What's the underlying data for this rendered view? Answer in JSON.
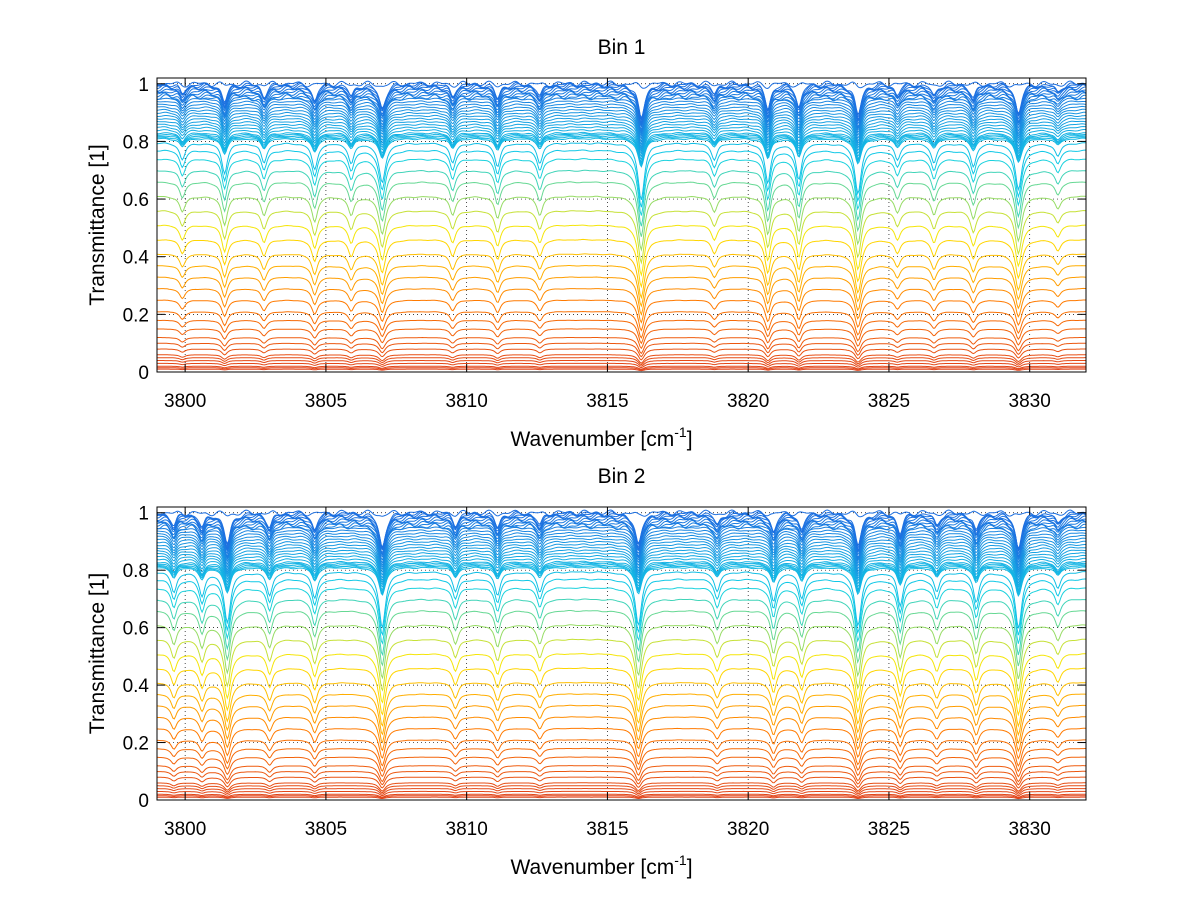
{
  "chart_data": [
    {
      "type": "line",
      "title": "Bin 1",
      "xlabel": "Wavenumber [cm",
      "xlabel_sup": "-1",
      "xlabel_end": "]",
      "ylabel": "Transmittance [1]",
      "xlim": [
        3799,
        3832
      ],
      "ylim": [
        0,
        1.02
      ],
      "xticks": [
        3800,
        3805,
        3810,
        3815,
        3820,
        3825,
        3830
      ],
      "yticks": [
        0,
        0.2,
        0.4,
        0.6,
        0.8,
        1
      ],
      "grid": "dotted",
      "n_series": 56,
      "colormap": [
        "#e0401a",
        "#ff7a00",
        "#ffe600",
        "#10d0e6",
        "#1d6fe0"
      ],
      "series_base_transmittance": [
        0.01,
        0.015,
        0.02,
        0.03,
        0.04,
        0.05,
        0.06,
        0.08,
        0.1,
        0.12,
        0.15,
        0.18,
        0.21,
        0.25,
        0.29,
        0.33,
        0.37,
        0.41,
        0.46,
        0.51,
        0.56,
        0.61,
        0.66,
        0.7,
        0.74,
        0.77,
        0.795,
        0.81,
        0.815,
        0.82,
        0.825,
        0.83,
        0.84,
        0.85,
        0.86,
        0.87,
        0.88,
        0.89,
        0.9,
        0.91,
        0.92,
        0.93,
        0.94,
        0.95,
        0.955,
        0.96,
        0.965,
        0.97,
        0.975,
        0.98,
        0.985,
        0.99,
        0.993,
        0.996,
        0.998,
        1.0
      ],
      "absorption_lines": [
        {
          "x": 3799.9,
          "depth": 0.25,
          "width": 0.12
        },
        {
          "x": 3801.4,
          "depth": 0.45,
          "width": 0.12
        },
        {
          "x": 3802.8,
          "depth": 0.3,
          "width": 0.12
        },
        {
          "x": 3804.6,
          "depth": 0.4,
          "width": 0.12
        },
        {
          "x": 3805.9,
          "depth": 0.3,
          "width": 0.12
        },
        {
          "x": 3807.0,
          "depth": 0.6,
          "width": 0.14
        },
        {
          "x": 3809.5,
          "depth": 0.3,
          "width": 0.12
        },
        {
          "x": 3811.1,
          "depth": 0.35,
          "width": 0.12
        },
        {
          "x": 3812.6,
          "depth": 0.3,
          "width": 0.12
        },
        {
          "x": 3816.2,
          "depth": 0.85,
          "width": 0.14
        },
        {
          "x": 3818.8,
          "depth": 0.25,
          "width": 0.12
        },
        {
          "x": 3820.7,
          "depth": 0.6,
          "width": 0.12
        },
        {
          "x": 3821.8,
          "depth": 0.55,
          "width": 0.12
        },
        {
          "x": 3823.9,
          "depth": 0.75,
          "width": 0.14
        },
        {
          "x": 3825.3,
          "depth": 0.25,
          "width": 0.12
        },
        {
          "x": 3826.6,
          "depth": 0.3,
          "width": 0.12
        },
        {
          "x": 3828.0,
          "depth": 0.35,
          "width": 0.12
        },
        {
          "x": 3829.6,
          "depth": 0.7,
          "width": 0.14
        },
        {
          "x": 3831.0,
          "depth": 0.2,
          "width": 0.12
        }
      ]
    },
    {
      "type": "line",
      "title": "Bin 2",
      "xlabel": "Wavenumber [cm",
      "xlabel_sup": "-1",
      "xlabel_end": "]",
      "ylabel": "Transmittance [1]",
      "xlim": [
        3799,
        3832
      ],
      "ylim": [
        0,
        1.02
      ],
      "xticks": [
        3800,
        3805,
        3810,
        3815,
        3820,
        3825,
        3830
      ],
      "yticks": [
        0,
        0.2,
        0.4,
        0.6,
        0.8,
        1
      ],
      "grid": "dotted",
      "n_series": 56,
      "colormap": [
        "#e0401a",
        "#ff7a00",
        "#ffe600",
        "#10d0e6",
        "#1d6fe0"
      ],
      "series_base_transmittance": [
        0.01,
        0.015,
        0.02,
        0.03,
        0.04,
        0.05,
        0.06,
        0.08,
        0.1,
        0.12,
        0.15,
        0.18,
        0.21,
        0.25,
        0.29,
        0.33,
        0.37,
        0.41,
        0.46,
        0.51,
        0.56,
        0.61,
        0.66,
        0.7,
        0.74,
        0.77,
        0.795,
        0.81,
        0.815,
        0.82,
        0.825,
        0.83,
        0.84,
        0.85,
        0.86,
        0.87,
        0.88,
        0.89,
        0.9,
        0.91,
        0.92,
        0.93,
        0.94,
        0.95,
        0.955,
        0.96,
        0.965,
        0.97,
        0.975,
        0.98,
        0.985,
        0.99,
        0.993,
        0.996,
        0.998,
        1.0
      ],
      "absorption_lines": [
        {
          "x": 3799.6,
          "depth": 0.3,
          "width": 0.12
        },
        {
          "x": 3800.6,
          "depth": 0.35,
          "width": 0.12
        },
        {
          "x": 3801.5,
          "depth": 0.75,
          "width": 0.14
        },
        {
          "x": 3803.0,
          "depth": 0.35,
          "width": 0.12
        },
        {
          "x": 3804.6,
          "depth": 0.4,
          "width": 0.12
        },
        {
          "x": 3807.0,
          "depth": 0.85,
          "width": 0.14
        },
        {
          "x": 3809.6,
          "depth": 0.3,
          "width": 0.12
        },
        {
          "x": 3811.1,
          "depth": 0.35,
          "width": 0.12
        },
        {
          "x": 3812.6,
          "depth": 0.3,
          "width": 0.12
        },
        {
          "x": 3816.1,
          "depth": 0.8,
          "width": 0.14
        },
        {
          "x": 3818.9,
          "depth": 0.3,
          "width": 0.12
        },
        {
          "x": 3820.9,
          "depth": 0.45,
          "width": 0.12
        },
        {
          "x": 3821.9,
          "depth": 0.4,
          "width": 0.12
        },
        {
          "x": 3823.9,
          "depth": 0.8,
          "width": 0.14
        },
        {
          "x": 3825.4,
          "depth": 0.5,
          "width": 0.12
        },
        {
          "x": 3826.7,
          "depth": 0.3,
          "width": 0.12
        },
        {
          "x": 3828.1,
          "depth": 0.45,
          "width": 0.12
        },
        {
          "x": 3829.6,
          "depth": 0.85,
          "width": 0.14
        },
        {
          "x": 3831.0,
          "depth": 0.25,
          "width": 0.12
        }
      ]
    }
  ]
}
